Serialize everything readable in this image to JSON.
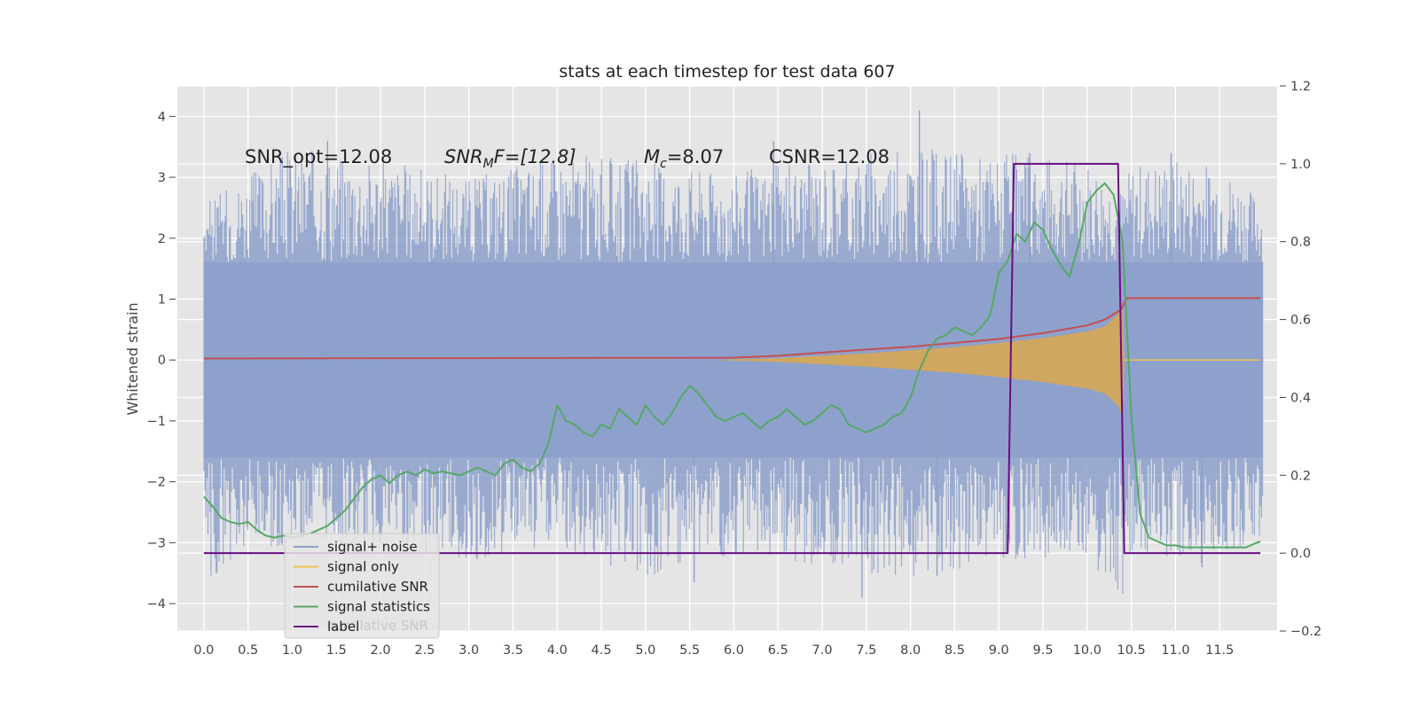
{
  "chart_data": {
    "type": "line",
    "title": "stats at each timestep for test data 607",
    "ylabel": "Whitened strain",
    "xlabel": "",
    "xlim": [
      -0.3,
      12.15
    ],
    "ylim": [
      -4.45,
      4.5
    ],
    "y2lim": [
      -0.2,
      1.2
    ],
    "grid": true,
    "legend_position": "lower-left",
    "x_ticks": [
      "0.0",
      "0.5",
      "1.0",
      "1.5",
      "2.0",
      "2.5",
      "3.0",
      "3.5",
      "4.0",
      "4.5",
      "5.0",
      "5.5",
      "6.0",
      "6.5",
      "7.0",
      "7.5",
      "8.0",
      "8.5",
      "9.0",
      "9.5",
      "10.0",
      "10.5",
      "11.0",
      "11.5"
    ],
    "y_ticks": [
      "4",
      "3",
      "2",
      "1",
      "0",
      "−1",
      "−2",
      "−3",
      "−4"
    ],
    "y2_ticks": [
      "1.2",
      "1.0",
      "0.8",
      "0.6",
      "0.4",
      "0.2",
      "0.0",
      "−0.2"
    ],
    "annotations": {
      "snr_opt": "SNR_opt=12.08",
      "snr_mf_main": "SNR",
      "snr_mf_sub": "M",
      "snr_mf_rest": "F=[12.8]",
      "mc_main": "M",
      "mc_sub": "c",
      "mc_rest": "=8.07",
      "csnr": "CSNR=12.08"
    },
    "legend": [
      {
        "label": "signal+ noise",
        "color": "#8da0cb"
      },
      {
        "label": "signal only",
        "color": "#f2c14e"
      },
      {
        "label": "cumilative SNR",
        "color": "#c44e52"
      },
      {
        "label": "signal statistics",
        "color": "#55a868"
      },
      {
        "label": "label",
        "color": "#6a0d83"
      }
    ],
    "legend_hidden_text": "cumilative SNR",
    "series": [
      {
        "name": "signal+ noise",
        "axis": "left",
        "color": "#8da0cb",
        "envelope_x": [
          0.0,
          1.0,
          2.0,
          3.0,
          4.0,
          5.0,
          6.0,
          7.0,
          8.0,
          9.0,
          10.0,
          10.4,
          10.5,
          11.0,
          11.5,
          12.0
        ],
        "envelope_hi": [
          2.6,
          3.5,
          3.3,
          3.0,
          3.4,
          3.3,
          3.1,
          3.3,
          3.5,
          3.4,
          3.3,
          2.8,
          3.2,
          3.3,
          3.2,
          2.6
        ],
        "envelope_lo": [
          -3.7,
          -3.0,
          -3.2,
          -3.3,
          -3.1,
          -3.6,
          -3.2,
          -3.4,
          -3.6,
          -3.3,
          -3.2,
          -4.05,
          -3.2,
          -3.4,
          -3.3,
          -2.9
        ],
        "spikes": [
          [
            1.4,
            3.6
          ],
          [
            6.45,
            3.6
          ],
          [
            8.1,
            4.1
          ],
          [
            9.35,
            3.4
          ],
          [
            10.95,
            3.4
          ],
          [
            11.3,
            -3.4
          ],
          [
            7.45,
            -3.9
          ],
          [
            8.3,
            -3.55
          ],
          [
            5.55,
            -3.65
          ]
        ]
      },
      {
        "name": "signal only",
        "axis": "left",
        "color": "#f2c14e",
        "x": [
          0.0,
          5.8,
          6.0,
          6.5,
          7.0,
          7.5,
          8.0,
          8.5,
          9.0,
          9.5,
          10.0,
          10.2,
          10.35,
          10.4,
          10.42,
          11.96
        ],
        "amp": [
          0.0,
          0.0,
          0.01,
          0.03,
          0.07,
          0.11,
          0.16,
          0.21,
          0.28,
          0.36,
          0.47,
          0.55,
          0.75,
          0.95,
          0.0,
          0.0
        ]
      },
      {
        "name": "cumilative SNR",
        "axis": "right",
        "color": "#c44e52",
        "x": [
          0.0,
          3.0,
          6.0,
          6.5,
          7.0,
          7.5,
          8.0,
          8.5,
          9.0,
          9.5,
          10.0,
          10.2,
          10.38,
          10.45,
          11.96
        ],
        "y": [
          0.5,
          0.501,
          0.502,
          0.507,
          0.515,
          0.523,
          0.53,
          0.54,
          0.55,
          0.565,
          0.585,
          0.6,
          0.625,
          0.655,
          0.655
        ]
      },
      {
        "name": "signal statistics",
        "axis": "right",
        "color": "#55a868",
        "x": [
          0.0,
          0.1,
          0.2,
          0.3,
          0.4,
          0.5,
          0.6,
          0.7,
          0.8,
          0.9,
          1.0,
          1.1,
          1.2,
          1.3,
          1.4,
          1.5,
          1.6,
          1.7,
          1.8,
          1.9,
          2.0,
          2.1,
          2.2,
          2.3,
          2.4,
          2.5,
          2.6,
          2.7,
          2.8,
          2.9,
          3.0,
          3.1,
          3.2,
          3.3,
          3.4,
          3.5,
          3.6,
          3.7,
          3.8,
          3.9,
          4.0,
          4.1,
          4.2,
          4.3,
          4.4,
          4.5,
          4.6,
          4.7,
          4.8,
          4.9,
          5.0,
          5.1,
          5.2,
          5.3,
          5.4,
          5.5,
          5.6,
          5.7,
          5.8,
          5.9,
          6.0,
          6.1,
          6.2,
          6.3,
          6.4,
          6.5,
          6.6,
          6.7,
          6.8,
          6.9,
          7.0,
          7.1,
          7.2,
          7.3,
          7.4,
          7.5,
          7.6,
          7.7,
          7.8,
          7.9,
          8.0,
          8.1,
          8.2,
          8.3,
          8.4,
          8.5,
          8.6,
          8.7,
          8.8,
          8.9,
          9.0,
          9.1,
          9.2,
          9.3,
          9.4,
          9.5,
          9.6,
          9.7,
          9.8,
          9.9,
          10.0,
          10.1,
          10.2,
          10.3,
          10.4,
          10.5,
          10.6,
          10.7,
          10.8,
          10.9,
          11.0,
          11.1,
          11.2,
          11.3,
          11.4,
          11.5,
          11.6,
          11.7,
          11.8,
          11.9,
          11.96
        ],
        "y": [
          0.145,
          0.12,
          0.09,
          0.08,
          0.075,
          0.08,
          0.06,
          0.045,
          0.04,
          0.045,
          0.04,
          0.045,
          0.05,
          0.06,
          0.07,
          0.09,
          0.11,
          0.14,
          0.17,
          0.19,
          0.2,
          0.18,
          0.2,
          0.21,
          0.2,
          0.215,
          0.205,
          0.21,
          0.205,
          0.2,
          0.21,
          0.22,
          0.21,
          0.2,
          0.23,
          0.24,
          0.22,
          0.21,
          0.23,
          0.28,
          0.38,
          0.34,
          0.33,
          0.31,
          0.3,
          0.33,
          0.32,
          0.37,
          0.35,
          0.33,
          0.38,
          0.35,
          0.33,
          0.36,
          0.4,
          0.43,
          0.41,
          0.38,
          0.35,
          0.34,
          0.35,
          0.36,
          0.34,
          0.32,
          0.34,
          0.35,
          0.37,
          0.35,
          0.33,
          0.34,
          0.36,
          0.38,
          0.37,
          0.33,
          0.32,
          0.31,
          0.32,
          0.33,
          0.35,
          0.36,
          0.4,
          0.47,
          0.52,
          0.55,
          0.56,
          0.58,
          0.57,
          0.56,
          0.58,
          0.61,
          0.72,
          0.75,
          0.82,
          0.8,
          0.85,
          0.83,
          0.78,
          0.74,
          0.71,
          0.79,
          0.9,
          0.93,
          0.95,
          0.92,
          0.8,
          0.35,
          0.1,
          0.04,
          0.03,
          0.02,
          0.02,
          0.015,
          0.015,
          0.015,
          0.015,
          0.015,
          0.015,
          0.015,
          0.015,
          0.025,
          0.03
        ]
      },
      {
        "name": "label",
        "axis": "right",
        "color": "#6a0d83",
        "x": [
          0.0,
          9.1,
          9.17,
          10.35,
          10.42,
          11.96
        ],
        "y": [
          0.0,
          0.0,
          1.0,
          1.0,
          0.0,
          0.0
        ]
      }
    ]
  }
}
